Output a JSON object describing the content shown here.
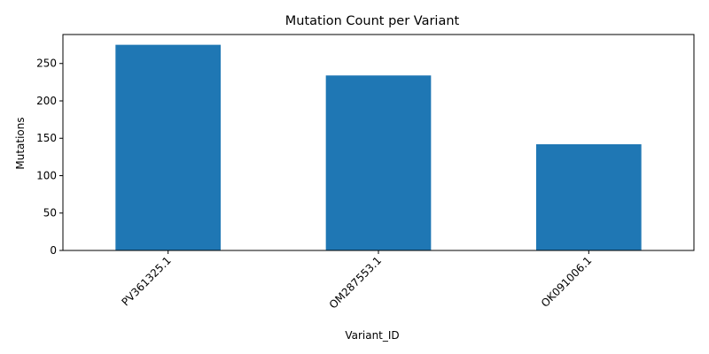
{
  "chart_data": {
    "type": "bar",
    "title": "Mutation Count per Variant",
    "xlabel": "Variant_ID",
    "ylabel": "Mutations",
    "categories": [
      "PV361325.1",
      "OM287553.1",
      "OK091006.1"
    ],
    "values": [
      275,
      234,
      142
    ],
    "ylim": [
      0,
      288.75
    ],
    "yticks": [
      0,
      50,
      100,
      150,
      200,
      250
    ],
    "bar_color": "#1f77b4",
    "grid": false,
    "legend": "none",
    "xtick_rotation_deg": 45
  }
}
